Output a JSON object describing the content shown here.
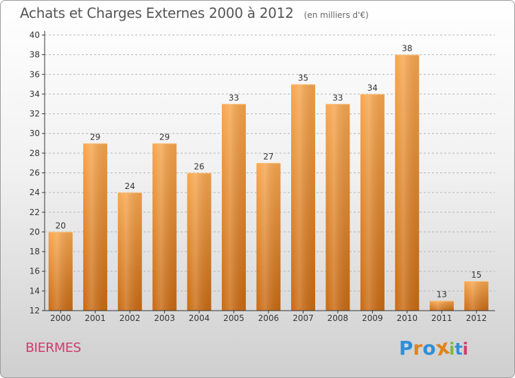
{
  "header": {
    "title": "Achats et Charges Externes 2000 à 2012",
    "subtitle": "(en milliers d'€)"
  },
  "footer": {
    "commune": "BIERMES",
    "brand_letters": [
      "P",
      "r",
      "o",
      "x",
      "i",
      "t",
      "i"
    ],
    "brand_colors": [
      "#2f8fd8",
      "#e0831b",
      "#2f8fd8",
      "#e0831b",
      "#7cb93b",
      "#2f8fd8",
      "#d23a6e"
    ]
  },
  "colors": {
    "bar_top": "#f7a64e",
    "bar_bottom": "#c96a12",
    "axis": "#333333",
    "grid": "#b5b5b5"
  },
  "chart_data": {
    "type": "bar",
    "categories": [
      "2000",
      "2001",
      "2002",
      "2003",
      "2004",
      "2005",
      "2006",
      "2007",
      "2008",
      "2009",
      "2010",
      "2011",
      "2012"
    ],
    "values": [
      20,
      29,
      24,
      29,
      26,
      33,
      27,
      35,
      33,
      34,
      38,
      13,
      15
    ],
    "ylim": [
      12,
      40
    ],
    "yticks": [
      12,
      14,
      16,
      18,
      20,
      22,
      24,
      26,
      28,
      30,
      32,
      34,
      36,
      38,
      40
    ],
    "grid": true,
    "data_labels": true
  }
}
